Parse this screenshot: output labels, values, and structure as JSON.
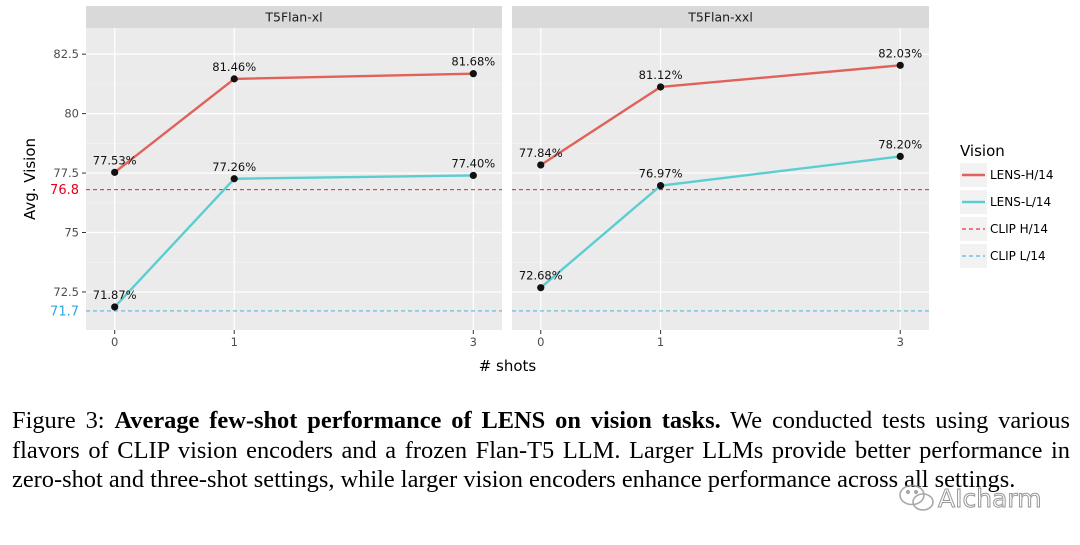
{
  "chart_data": {
    "type": "line",
    "panels": [
      {
        "title": "T5Flan-xl",
        "x": [
          0,
          1,
          3
        ],
        "series": [
          {
            "name": "LENS-H/14",
            "values": [
              77.53,
              81.46,
              81.68
            ],
            "labels": [
              "77.53%",
              "81.46%",
              "81.68%"
            ],
            "color": "#E0625A"
          },
          {
            "name": "LENS-L/14",
            "values": [
              71.87,
              77.26,
              77.4
            ],
            "labels": [
              "71.87%",
              "77.26%",
              "77.40%"
            ],
            "color": "#5CCDD0"
          }
        ]
      },
      {
        "title": "T5Flan-xxl",
        "x": [
          0,
          1,
          3
        ],
        "series": [
          {
            "name": "LENS-H/14",
            "values": [
              77.84,
              81.12,
              82.03
            ],
            "labels": [
              "77.84%",
              "81.12%",
              "82.03%"
            ],
            "color": "#E0625A"
          },
          {
            "name": "LENS-L/14",
            "values": [
              72.68,
              76.97,
              78.2
            ],
            "labels": [
              "72.68%",
              "76.97%",
              "78.20%"
            ],
            "color": "#5CCDD0"
          }
        ]
      }
    ],
    "reference_lines": [
      {
        "name": "CLIP H/14",
        "value": 76.8,
        "label": "76.8",
        "color": "#E8001C",
        "style": "dashed"
      },
      {
        "name": "CLIP L/14",
        "value": 71.7,
        "label": "71.7",
        "color": "#2FA8E0",
        "style": "dashed"
      }
    ],
    "xlabel": "# shots",
    "ylabel": "Avg. Vision",
    "xticks": [
      "0",
      "1",
      "3"
    ],
    "yticks": [
      72.5,
      75,
      77.5,
      80,
      82.5
    ],
    "ytick_labels": [
      "72.5",
      "75",
      "77.5",
      "80",
      "82.5"
    ],
    "ylim": [
      70.9,
      83.6
    ],
    "legend": {
      "title": "Vision",
      "position": "right",
      "entries": [
        "LENS-H/14",
        "LENS-L/14",
        "CLIP H/14",
        "CLIP L/14"
      ]
    },
    "grid": true,
    "background": "#EBEBEB"
  },
  "caption": {
    "label": "Figure 3:",
    "bold": "Average few-shot performance of LENS on vision tasks.",
    "text": "We conducted tests using various flavors of CLIP vision encoders and a frozen Flan-T5 LLM. Larger LLMs provide better performance in zero-shot and three-shot settings, while larger vision encoders enhance performance across all settings."
  },
  "watermark": {
    "text": "AIcharm",
    "icon": "wechat-icon"
  }
}
